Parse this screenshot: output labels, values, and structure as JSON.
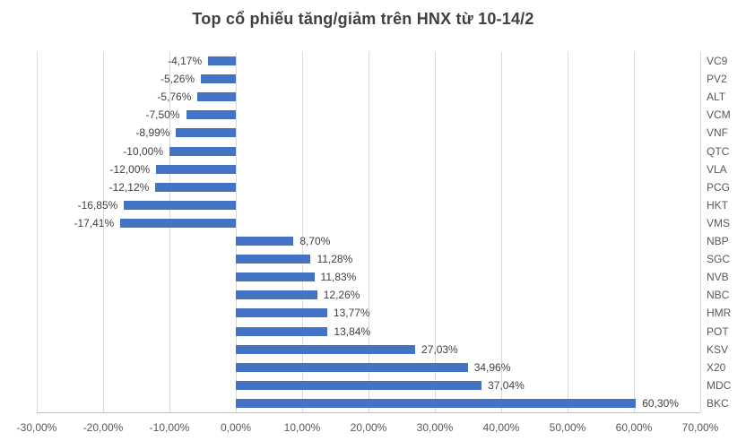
{
  "title": "Top cổ phiếu tăng/giảm trên HNX từ 10-14/2",
  "chart_data": {
    "type": "bar",
    "orientation": "horizontal",
    "title": "Top cổ phiếu tăng/giảm trên HNX từ 10-14/2",
    "categories": [
      "VC9",
      "PV2",
      "ALT",
      "VCM",
      "VNF",
      "QTC",
      "VLA",
      "PCG",
      "HKT",
      "VMS",
      "NBP",
      "SGC",
      "NVB",
      "NBC",
      "HMR",
      "POT",
      "KSV",
      "X20",
      "MDC",
      "BKC"
    ],
    "values": [
      -4.17,
      -5.26,
      -5.76,
      -7.5,
      -8.99,
      -10.0,
      -12.0,
      -12.12,
      -16.85,
      -17.41,
      8.7,
      11.28,
      11.83,
      12.26,
      13.77,
      13.84,
      27.03,
      34.96,
      37.04,
      60.3
    ],
    "value_labels": [
      "-4,17%",
      "-5,26%",
      "-5,76%",
      "-7,50%",
      "-8,99%",
      "-10,00%",
      "-12,00%",
      "-12,12%",
      "-16,85%",
      "-17,41%",
      "8,70%",
      "11,28%",
      "11,83%",
      "12,26%",
      "13,77%",
      "13,84%",
      "27,03%",
      "34,96%",
      "37,04%",
      "60,30%"
    ],
    "x_ticks": [
      {
        "value": -30,
        "label": "-30,00%"
      },
      {
        "value": -20,
        "label": "-20,00%"
      },
      {
        "value": -10,
        "label": "-10,00%"
      },
      {
        "value": 0,
        "label": "0,00%"
      },
      {
        "value": 10,
        "label": "10,00%"
      },
      {
        "value": 20,
        "label": "20,00%"
      },
      {
        "value": 30,
        "label": "30,00%"
      },
      {
        "value": 40,
        "label": "40,00%"
      },
      {
        "value": 50,
        "label": "50,00%"
      },
      {
        "value": 60,
        "label": "60,00%"
      },
      {
        "value": 70,
        "label": "70,00%"
      }
    ],
    "xlim": [
      -30,
      70
    ],
    "grid": true,
    "category_axis_side": "right",
    "legend": "none",
    "bar_color": "#4472C4",
    "gridline_color": "#d9d9d9",
    "axis_line_color": "#bfbfbf",
    "title_color": "#404040",
    "label_color": "#404040",
    "tick_color": "#595959"
  }
}
